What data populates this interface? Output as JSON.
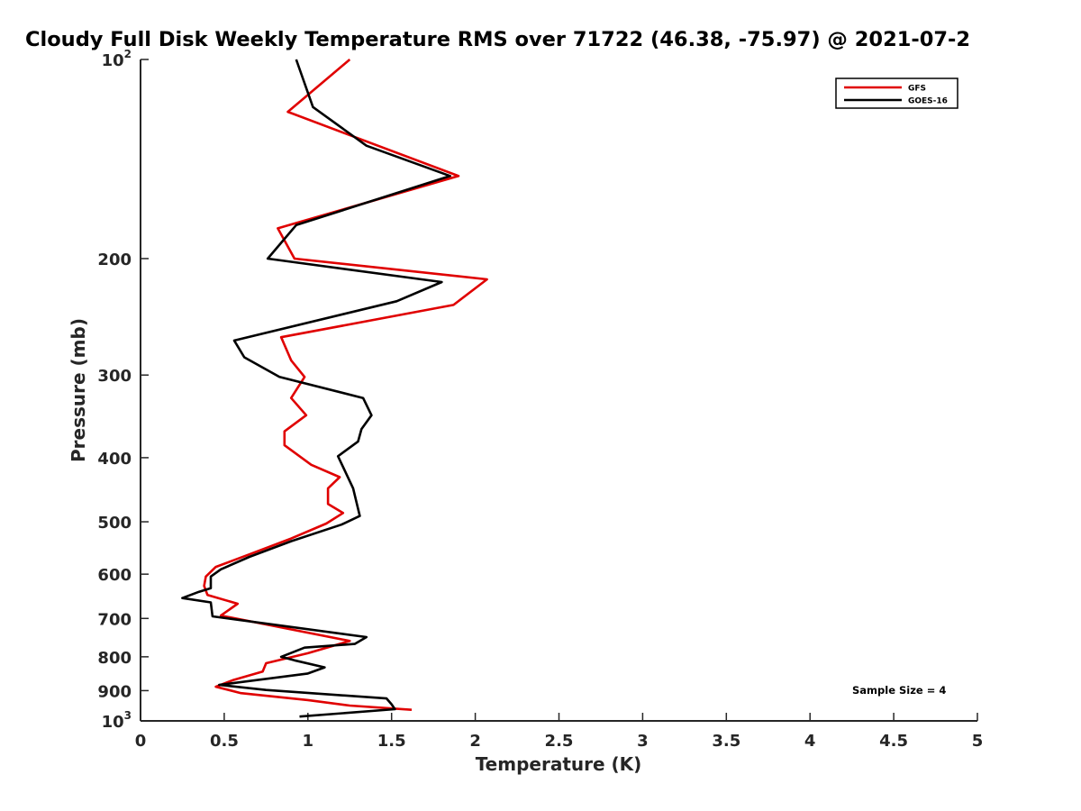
{
  "chart_data": {
    "type": "line",
    "title": "Cloudy Full Disk Weekly Temperature RMS over 71722 (46.38, -75.97) @ 2021-07-2",
    "xlabel": "Temperature (K)",
    "ylabel": "Pressure (mb)",
    "xlim": [
      0,
      5
    ],
    "ylim": [
      1000,
      100
    ],
    "yscale": "log",
    "y_reversed": true,
    "x_ticks": [
      "0",
      "0.5",
      "1",
      "1.5",
      "2",
      "2.5",
      "3",
      "3.5",
      "4",
      "4.5",
      "5"
    ],
    "x_tick_values": [
      0,
      0.5,
      1,
      1.5,
      2,
      2.5,
      3,
      3.5,
      4,
      4.5,
      5
    ],
    "y_tick_values": [
      100,
      200,
      300,
      400,
      500,
      600,
      700,
      800,
      900,
      1000
    ],
    "y_tick_labels": [
      {
        "base": "10",
        "exp": "2"
      },
      {
        "base": "200"
      },
      {
        "base": "300"
      },
      {
        "base": "400"
      },
      {
        "base": "500"
      },
      {
        "base": "600"
      },
      {
        "base": "700"
      },
      {
        "base": "800"
      },
      {
        "base": "900"
      },
      {
        "base": "10",
        "exp": "3"
      }
    ],
    "legend": {
      "placement": "top-right"
    },
    "annotation": "Sample Size = 4",
    "series": [
      {
        "name": "GFS",
        "color": "#e00000",
        "points": [
          [
            1.25,
            100
          ],
          [
            0.88,
            120
          ],
          [
            1.9,
            150
          ],
          [
            0.82,
            180
          ],
          [
            0.92,
            200
          ],
          [
            2.07,
            215
          ],
          [
            1.87,
            235
          ],
          [
            0.84,
            263
          ],
          [
            0.9,
            285
          ],
          [
            0.98,
            302
          ],
          [
            0.9,
            325
          ],
          [
            0.99,
            345
          ],
          [
            0.86,
            365
          ],
          [
            0.86,
            383
          ],
          [
            1.02,
            410
          ],
          [
            1.19,
            428
          ],
          [
            1.12,
            445
          ],
          [
            1.12,
            470
          ],
          [
            1.21,
            485
          ],
          [
            1.11,
            503
          ],
          [
            0.9,
            530
          ],
          [
            0.65,
            560
          ],
          [
            0.45,
            585
          ],
          [
            0.39,
            605
          ],
          [
            0.38,
            625
          ],
          [
            0.4,
            645
          ],
          [
            0.58,
            665
          ],
          [
            0.48,
            693
          ],
          [
            1.25,
            757
          ],
          [
            1.0,
            790
          ],
          [
            0.75,
            818
          ],
          [
            0.73,
            842
          ],
          [
            0.55,
            868
          ],
          [
            0.45,
            888
          ],
          [
            0.6,
            908
          ],
          [
            1.0,
            930
          ],
          [
            1.25,
            948
          ],
          [
            1.62,
            962
          ]
        ]
      },
      {
        "name": "GOES-16",
        "color": "#000000",
        "points": [
          [
            0.93,
            100
          ],
          [
            1.03,
            118
          ],
          [
            1.35,
            135
          ],
          [
            1.85,
            150
          ],
          [
            0.93,
            178
          ],
          [
            0.76,
            200
          ],
          [
            1.8,
            217
          ],
          [
            1.53,
            232
          ],
          [
            0.56,
            266
          ],
          [
            0.62,
            282
          ],
          [
            0.83,
            302
          ],
          [
            1.33,
            325
          ],
          [
            1.38,
            345
          ],
          [
            1.32,
            362
          ],
          [
            1.3,
            378
          ],
          [
            1.18,
            398
          ],
          [
            1.27,
            445
          ],
          [
            1.31,
            490
          ],
          [
            1.2,
            505
          ],
          [
            0.9,
            535
          ],
          [
            0.65,
            565
          ],
          [
            0.48,
            590
          ],
          [
            0.42,
            605
          ],
          [
            0.42,
            630
          ],
          [
            0.35,
            638
          ],
          [
            0.25,
            652
          ],
          [
            0.42,
            662
          ],
          [
            0.43,
            695
          ],
          [
            1.35,
            747
          ],
          [
            1.28,
            765
          ],
          [
            0.98,
            775
          ],
          [
            0.84,
            800
          ],
          [
            0.92,
            810
          ],
          [
            1.1,
            830
          ],
          [
            1.0,
            848
          ],
          [
            0.47,
            882
          ],
          [
            0.75,
            898
          ],
          [
            1.47,
            925
          ],
          [
            1.5,
            944
          ],
          [
            1.52,
            960
          ],
          [
            0.95,
            985
          ]
        ]
      }
    ]
  }
}
